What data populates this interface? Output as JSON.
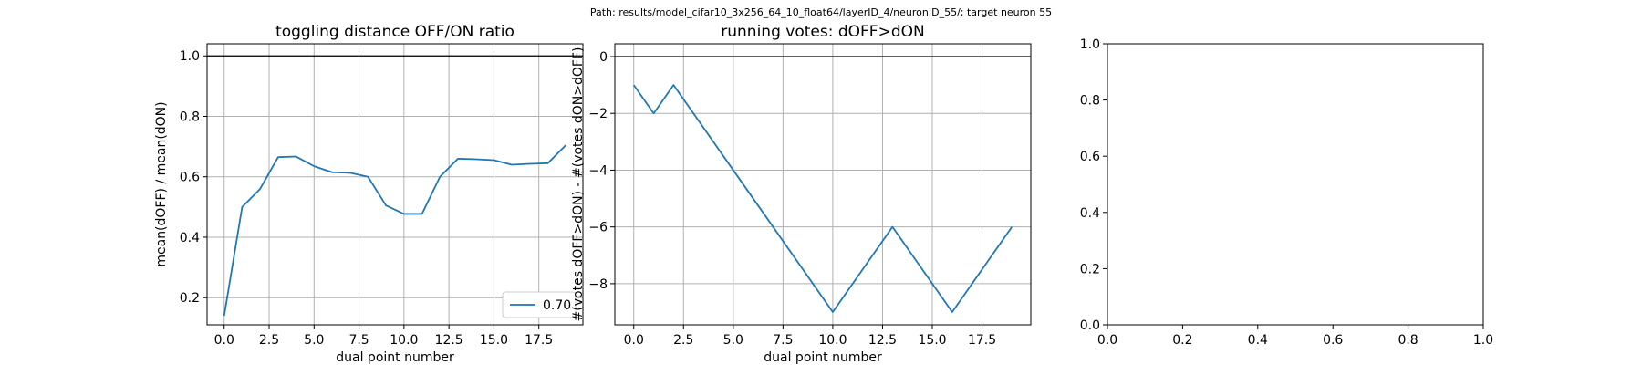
{
  "figure": {
    "suptitle": "Path: results/model_cifar10_3x256_64_10_float64/layerID_4/neuronID_55/; target neuron 55"
  },
  "colors": {
    "series": "#1f77b4",
    "grid": "#b0b0b0",
    "refline": "#000000"
  },
  "chart_data": [
    {
      "type": "line",
      "title": "toggling distance OFF/ON ratio",
      "xlabel": "dual point number",
      "ylabel": "mean(dOFF) / mean(dON)",
      "xlim": [
        -0.95,
        19.95
      ],
      "ylim": [
        0.11,
        1.04
      ],
      "xticks": [
        0,
        2.5,
        5,
        7.5,
        10,
        12.5,
        15,
        17.5
      ],
      "xtick_labels": [
        "0.0",
        "2.5",
        "5.0",
        "7.5",
        "10.0",
        "12.5",
        "15.0",
        "17.5"
      ],
      "yticks": [
        0.2,
        0.4,
        0.6,
        0.8,
        1.0
      ],
      "ytick_labels": [
        "0.2",
        "0.4",
        "0.6",
        "0.8",
        "1.0"
      ],
      "grid": true,
      "hline": 1.0,
      "legend": "lower right",
      "series": [
        {
          "name": "0.70",
          "x": [
            0,
            1,
            2,
            3,
            4,
            5,
            6,
            7,
            8,
            9,
            10,
            11,
            12,
            13,
            14,
            15,
            16,
            17,
            18,
            19
          ],
          "y": [
            0.14,
            0.5,
            0.56,
            0.665,
            0.667,
            0.635,
            0.615,
            0.613,
            0.6,
            0.505,
            0.477,
            0.477,
            0.6,
            0.66,
            0.658,
            0.655,
            0.64,
            0.643,
            0.645,
            0.705
          ]
        }
      ]
    },
    {
      "type": "line",
      "title": "running votes: dOFF>dON",
      "xlabel": "dual point number",
      "ylabel": "#(votes dOFF>dON) - #(votes dON>dOFF)",
      "xlim": [
        -0.95,
        19.95
      ],
      "ylim": [
        -9.45,
        0.45
      ],
      "xticks": [
        0,
        2.5,
        5,
        7.5,
        10,
        12.5,
        15,
        17.5
      ],
      "xtick_labels": [
        "0.0",
        "2.5",
        "5.0",
        "7.5",
        "10.0",
        "12.5",
        "15.0",
        "17.5"
      ],
      "yticks": [
        0,
        -2,
        -4,
        -6,
        -8
      ],
      "ytick_labels": [
        "0",
        "−2",
        "−4",
        "−6",
        "−8"
      ],
      "grid": true,
      "hline": 0,
      "series": [
        {
          "x": [
            0,
            1,
            2,
            3,
            4,
            5,
            6,
            7,
            8,
            9,
            10,
            11,
            12,
            13,
            14,
            15,
            16,
            17,
            18,
            19
          ],
          "y": [
            -1,
            -2,
            -1,
            -2,
            -3,
            -4,
            -5,
            -6,
            -7,
            -8,
            -9,
            -8,
            -7,
            -6,
            -7,
            -8,
            -9,
            -8,
            -7,
            -6
          ]
        }
      ]
    },
    {
      "type": "line",
      "title": "",
      "xlabel": "",
      "ylabel": "",
      "xlim": [
        0,
        1
      ],
      "ylim": [
        0,
        1
      ],
      "xticks": [
        0,
        0.2,
        0.4,
        0.6,
        0.8,
        1.0
      ],
      "xtick_labels": [
        "0.0",
        "0.2",
        "0.4",
        "0.6",
        "0.8",
        "1.0"
      ],
      "yticks": [
        0,
        0.2,
        0.4,
        0.6,
        0.8,
        1.0
      ],
      "ytick_labels": [
        "0.0",
        "0.2",
        "0.4",
        "0.6",
        "0.8",
        "1.0"
      ],
      "grid": false,
      "series": []
    }
  ]
}
